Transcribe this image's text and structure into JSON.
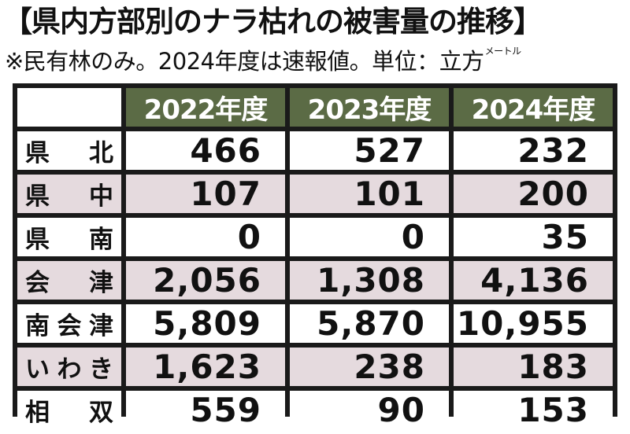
{
  "title": "【県内方部別のナラ枯れの被害量の推移】",
  "subtitle": "※民有林のみ。2024年度は速報値。単位：立方",
  "unit_suffix": "メートル",
  "chart_data": {
    "type": "table",
    "columns": [
      "2022年度",
      "2023年度",
      "2024年度"
    ],
    "rows": [
      {
        "region": "県北",
        "values": [
          "466",
          "527",
          "232"
        ]
      },
      {
        "region": "県中",
        "values": [
          "107",
          "101",
          "200"
        ]
      },
      {
        "region": "県南",
        "values": [
          "0",
          "0",
          "35"
        ]
      },
      {
        "region": "会津",
        "values": [
          "2,056",
          "1,308",
          "4,136"
        ]
      },
      {
        "region": "南会津",
        "values": [
          "5,809",
          "5,870",
          "10,955"
        ]
      },
      {
        "region": "いわき",
        "values": [
          "1,623",
          "238",
          "183"
        ]
      },
      {
        "region": "相双",
        "values": [
          "559",
          "90",
          "153"
        ]
      }
    ],
    "colors": {
      "header_background": "#5b6b45",
      "header_text": "#ffffff",
      "grid": "#1a1a1a",
      "odd_row": "#ffffff",
      "even_row": "#e5dade"
    }
  }
}
